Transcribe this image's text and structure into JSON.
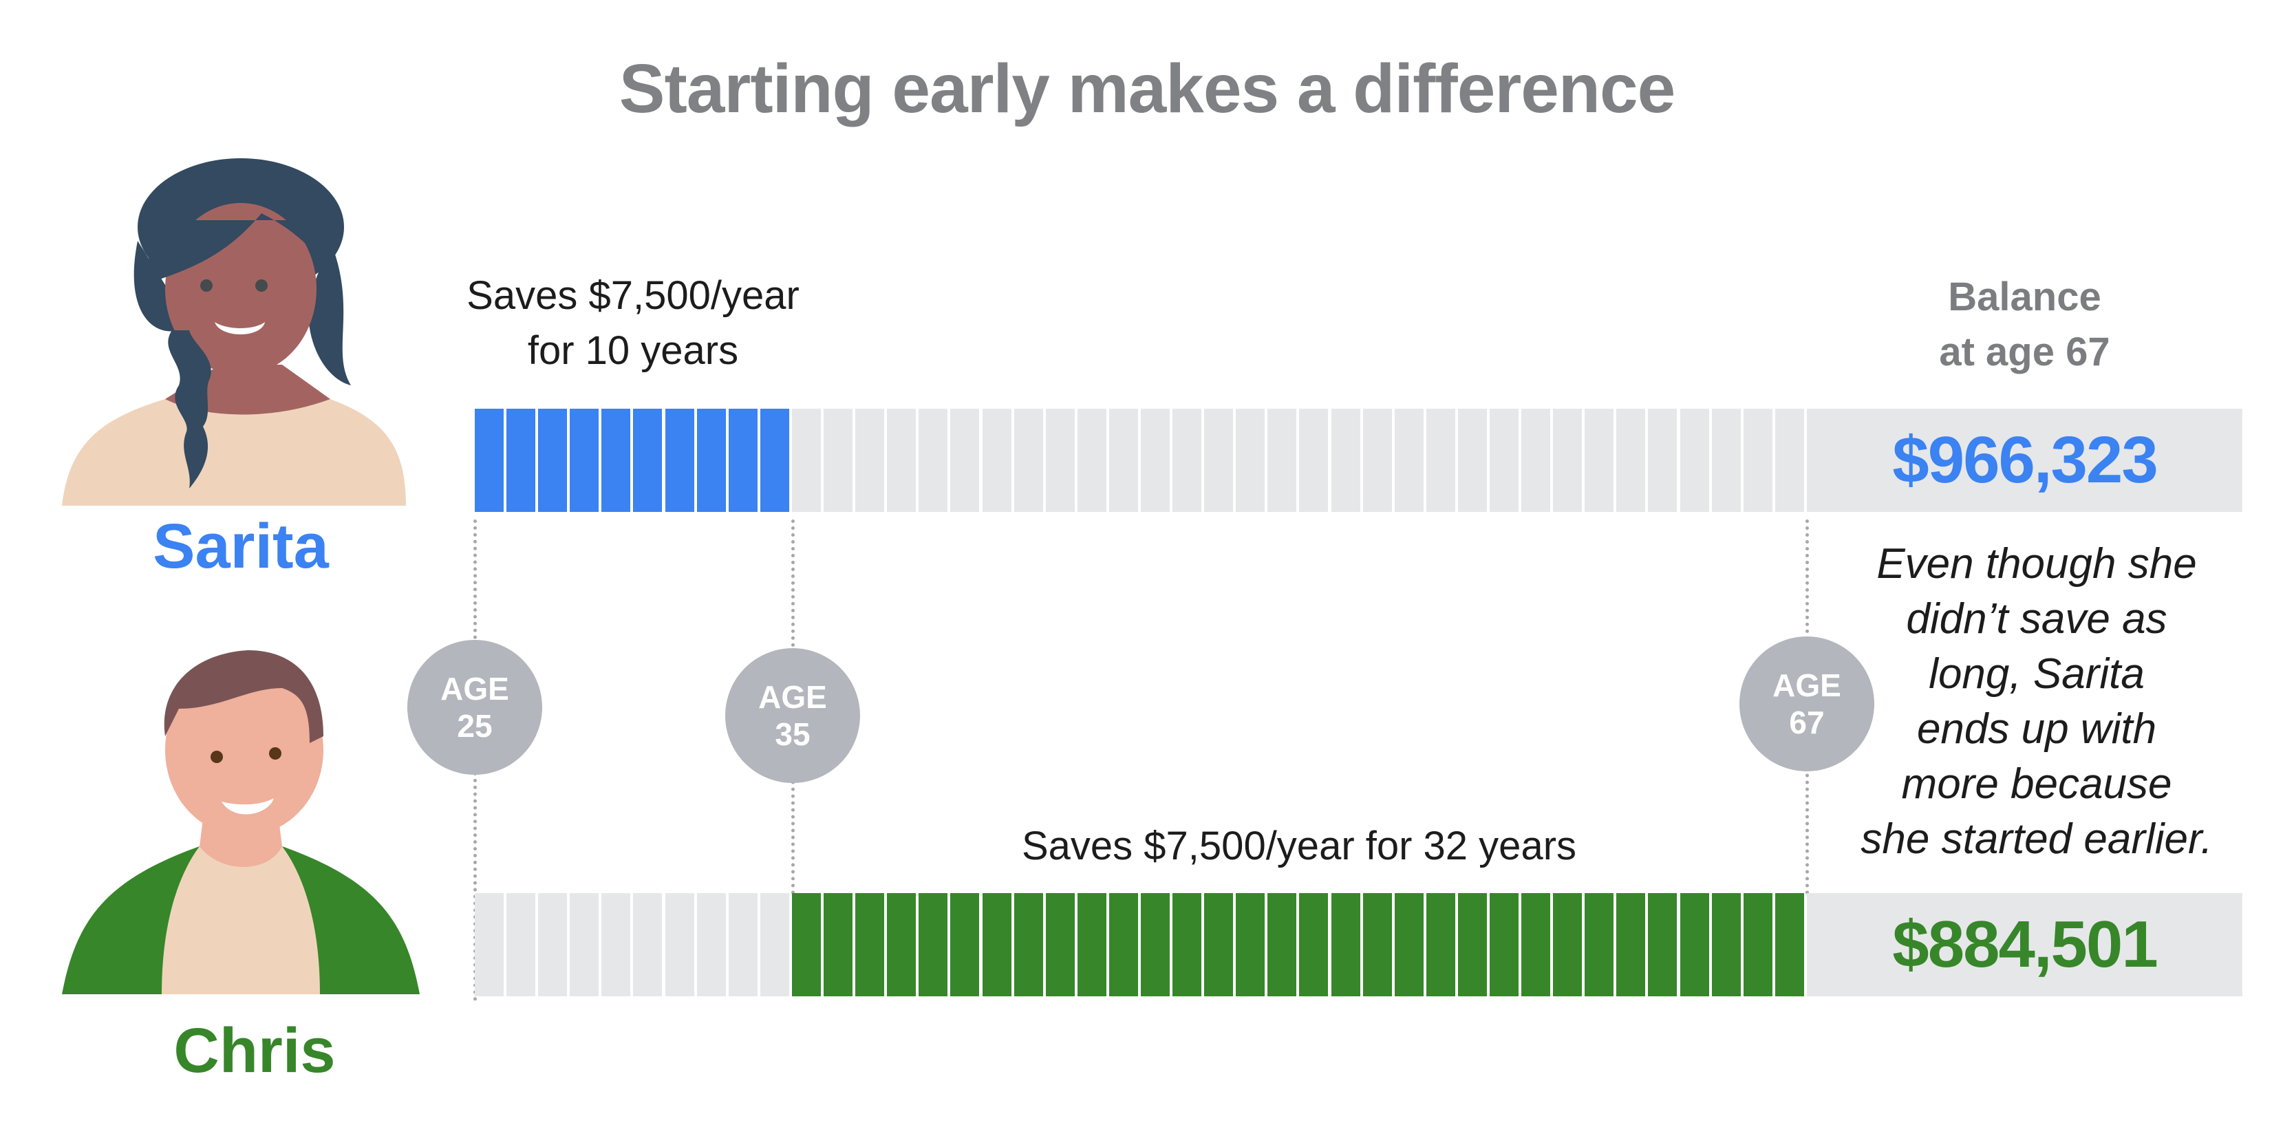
{
  "title": "Starting early makes a difference",
  "colors": {
    "sarita": "#3b82f2",
    "chris": "#37862a",
    "empty": "#e6e7e9",
    "circle": "#b3b6bc",
    "title": "#808184"
  },
  "people": [
    {
      "name": "Sarita",
      "label_line1": "Saves $7,500/year",
      "label_line2": "for 10 years",
      "balance": "$966,323"
    },
    {
      "name": "Chris",
      "label_line1": "Saves $7,500/year for 32 years",
      "balance": "$884,501"
    }
  ],
  "balance_header": {
    "line1": "Balance",
    "line2": "at age 67"
  },
  "ages": [
    {
      "top": "AGE",
      "value": "25"
    },
    {
      "top": "AGE",
      "value": "35"
    },
    {
      "top": "AGE",
      "value": "67"
    }
  ],
  "note_lines": [
    "Even though she",
    "didn’t save as",
    "long, Sarita",
    "ends up with",
    "more because",
    "she started earlier."
  ],
  "chart_data": {
    "type": "bar",
    "title": "Starting early makes a difference",
    "x_axis": {
      "start_age": 25,
      "end_age": 67,
      "segments": 42,
      "markers": [
        25,
        35,
        67
      ]
    },
    "series": [
      {
        "name": "Sarita",
        "annual_saving": 7500,
        "start_age": 25,
        "end_age": 35,
        "years": 10,
        "balance_at_67": 966323,
        "color": "#3b82f2"
      },
      {
        "name": "Chris",
        "annual_saving": 7500,
        "start_age": 35,
        "end_age": 67,
        "years": 32,
        "balance_at_67": 884501,
        "color": "#37862a"
      }
    ],
    "annotation": "Even though she didn’t save as long, Sarita ends up with more because she started earlier."
  }
}
